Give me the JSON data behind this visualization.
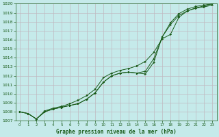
{
  "bg_color": "#c5eaea",
  "grid_color": "#c0b8c0",
  "line_color": "#1a5c1a",
  "marker_color": "#1a5c1a",
  "title": "Graphe pression niveau de la mer (hPa)",
  "ylim": [
    1007,
    1020
  ],
  "xlim": [
    -0.5,
    23.5
  ],
  "yticks": [
    1007,
    1008,
    1009,
    1010,
    1011,
    1012,
    1013,
    1014,
    1015,
    1016,
    1017,
    1018,
    1019,
    1020
  ],
  "xticks": [
    0,
    1,
    2,
    3,
    4,
    5,
    6,
    7,
    8,
    9,
    10,
    11,
    12,
    13,
    14,
    15,
    16,
    17,
    18,
    19,
    20,
    21,
    22,
    23
  ],
  "series": [
    [
      1008.0,
      1007.8,
      1007.2,
      1008.0,
      1008.3,
      1008.5,
      1008.7,
      1008.9,
      1009.4,
      1010.1,
      1011.3,
      1012.0,
      1012.3,
      1012.4,
      1012.3,
      1012.2,
      1013.5,
      1016.3,
      1017.9,
      1018.9,
      1019.4,
      1019.7,
      1019.85,
      1020.0
    ],
    [
      1008.0,
      1007.8,
      1007.2,
      1008.0,
      1008.3,
      1008.5,
      1008.7,
      1008.9,
      1009.4,
      1010.1,
      1011.3,
      1012.0,
      1012.3,
      1012.4,
      1012.3,
      1012.5,
      1013.9,
      1016.3,
      1017.7,
      1018.7,
      1019.2,
      1019.5,
      1019.65,
      1019.85
    ],
    [
      1008.0,
      1007.8,
      1007.2,
      1008.1,
      1008.4,
      1008.6,
      1008.9,
      1009.3,
      1009.8,
      1010.5,
      1011.8,
      1012.3,
      1012.6,
      1012.8,
      1013.1,
      1013.6,
      1014.6,
      1016.1,
      1016.6,
      1018.5,
      1019.2,
      1019.55,
      1019.75,
      1020.0
    ]
  ]
}
